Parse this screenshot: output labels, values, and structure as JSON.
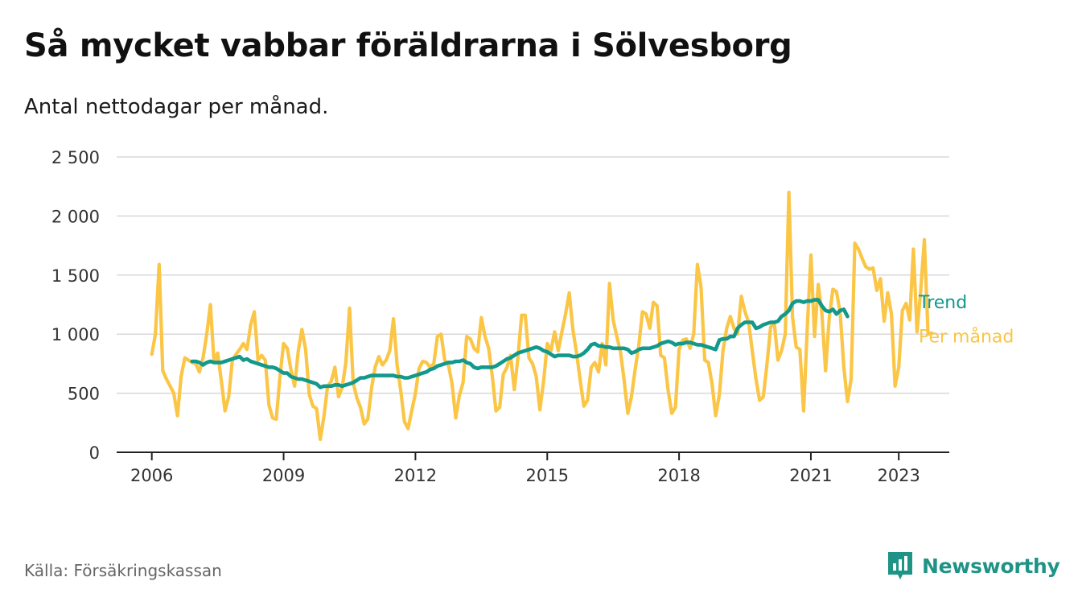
{
  "header": {
    "title": "Så mycket vabbar föräldrarna i Sölvesborg",
    "subtitle": "Antal nettodagar per månad."
  },
  "footer": {
    "source": "Källa: Försäkringskassan",
    "brand": "Newsworthy"
  },
  "colors": {
    "monthly": "#fbc545",
    "trend": "#12998b",
    "grid": "#d9d9d9",
    "brand": "#1f9386"
  },
  "chart_data": {
    "type": "line",
    "title": "Så mycket vabbar föräldrarna i Sölvesborg",
    "subtitle": "Antal nettodagar per månad.",
    "xlabel": "",
    "ylabel": "",
    "xlim": [
      2005.2,
      2024.15
    ],
    "ylim": [
      0,
      2500
    ],
    "yticks": [
      0,
      500,
      1000,
      1500,
      2000,
      2500
    ],
    "ytick_labels": [
      "0",
      "500",
      "1 000",
      "1 500",
      "2 000",
      "2 500"
    ],
    "xticks": [
      2006,
      2009,
      2012,
      2015,
      2018,
      2021,
      2023
    ],
    "xtick_labels": [
      "2006",
      "2009",
      "2012",
      "2015",
      "2018",
      "2021",
      "2023"
    ],
    "grid": true,
    "legend_placement": "inline-end-of-lines",
    "series": [
      {
        "name": "Per månad",
        "start": 2006.0,
        "step": 0.0833333,
        "values": [
          830,
          1000,
          1590,
          690,
          620,
          560,
          500,
          310,
          640,
          800,
          780,
          760,
          750,
          680,
          800,
          1000,
          1250,
          760,
          840,
          600,
          350,
          470,
          780,
          830,
          870,
          920,
          870,
          1080,
          1190,
          780,
          820,
          780,
          400,
          290,
          280,
          640,
          920,
          880,
          700,
          560,
          860,
          1040,
          870,
          490,
          390,
          370,
          110,
          300,
          560,
          600,
          720,
          470,
          550,
          760,
          1220,
          590,
          460,
          380,
          240,
          280,
          540,
          720,
          810,
          740,
          780,
          860,
          1130,
          740,
          520,
          260,
          200,
          350,
          500,
          710,
          770,
          760,
          720,
          750,
          980,
          1000,
          780,
          740,
          580,
          290,
          480,
          590,
          980,
          960,
          880,
          850,
          1140,
          980,
          880,
          640,
          350,
          380,
          660,
          720,
          820,
          530,
          800,
          1160,
          1160,
          800,
          750,
          640,
          360,
          600,
          920,
          860,
          1020,
          860,
          1020,
          1170,
          1350,
          1040,
          840,
          610,
          390,
          440,
          720,
          760,
          680,
          920,
          740,
          1430,
          1120,
          980,
          850,
          610,
          330,
          470,
          700,
          900,
          1190,
          1170,
          1050,
          1270,
          1240,
          820,
          800,
          530,
          330,
          380,
          870,
          950,
          960,
          880,
          1000,
          1590,
          1400,
          780,
          760,
          580,
          310,
          490,
          860,
          1050,
          1150,
          1050,
          1000,
          1320,
          1190,
          1100,
          860,
          620,
          440,
          470,
          740,
          1060,
          1100,
          780,
          860,
          1000,
          2200,
          1140,
          890,
          870,
          350,
          1040,
          1670,
          980,
          1420,
          1180,
          690,
          1130,
          1380,
          1360,
          1180,
          720,
          430,
          620,
          1770,
          1720,
          1640,
          1570,
          1550,
          1560,
          1370,
          1470,
          1110,
          1350,
          1170,
          560,
          720,
          1200,
          1260,
          1120,
          1720,
          1020,
          1370,
          1800,
          1000,
          1010
        ]
      },
      {
        "name": "Trend",
        "start": 2006.9167,
        "step": 0.0833333,
        "values": [
          770,
          770,
          760,
          740,
          760,
          770,
          760,
          760,
          760,
          770,
          780,
          790,
          800,
          810,
          780,
          790,
          770,
          760,
          750,
          740,
          730,
          720,
          720,
          710,
          690,
          670,
          670,
          640,
          630,
          620,
          620,
          610,
          600,
          590,
          580,
          550,
          560,
          560,
          560,
          570,
          570,
          560,
          570,
          580,
          590,
          610,
          630,
          630,
          640,
          650,
          650,
          650,
          650,
          650,
          650,
          650,
          640,
          640,
          630,
          630,
          640,
          650,
          660,
          670,
          680,
          700,
          710,
          730,
          740,
          750,
          760,
          760,
          770,
          770,
          780,
          760,
          750,
          720,
          710,
          720,
          720,
          720,
          720,
          730,
          750,
          770,
          790,
          800,
          820,
          840,
          850,
          860,
          870,
          880,
          890,
          880,
          860,
          850,
          830,
          810,
          820,
          820,
          820,
          820,
          810,
          810,
          820,
          840,
          870,
          910,
          920,
          900,
          900,
          890,
          890,
          880,
          880,
          880,
          880,
          870,
          840,
          850,
          870,
          880,
          880,
          880,
          890,
          900,
          920,
          930,
          940,
          930,
          910,
          920,
          920,
          930,
          930,
          920,
          910,
          910,
          900,
          890,
          880,
          870,
          950,
          960,
          960,
          980,
          980,
          1050,
          1080,
          1100,
          1100,
          1100,
          1050,
          1060,
          1080,
          1090,
          1100,
          1100,
          1110,
          1150,
          1170,
          1200,
          1260,
          1280,
          1280,
          1270,
          1280,
          1280,
          1290,
          1290,
          1240,
          1200,
          1190,
          1210,
          1170,
          1200,
          1210,
          1150
        ]
      }
    ]
  }
}
